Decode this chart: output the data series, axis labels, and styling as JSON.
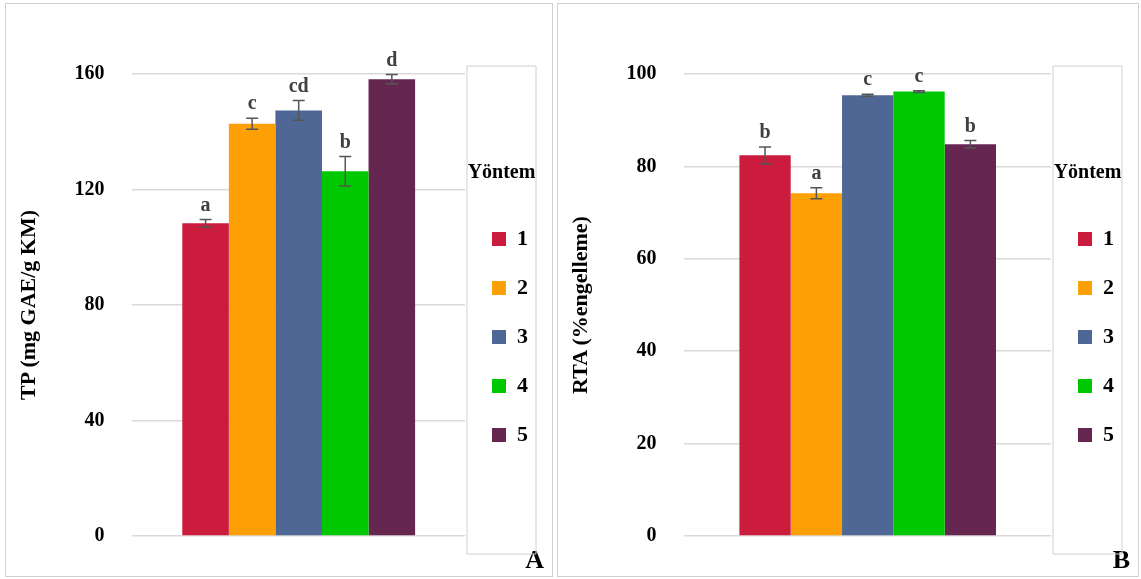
{
  "chart_data": [
    {
      "type": "bar",
      "ylabel": "TP (mg GAE/g KM)",
      "legend_title": "Yöntem",
      "legend": "right",
      "grid": "y",
      "categories": [
        null
      ],
      "series": [
        {
          "name": "1",
          "color": "#cc1c3e",
          "values": [
            108.3
          ],
          "errors": [
            1.3
          ]
        },
        {
          "name": "2",
          "color": "#fca005",
          "values": [
            142.8
          ],
          "errors": [
            1.9
          ]
        },
        {
          "name": "3",
          "color": "#4f6794",
          "values": [
            147.4
          ],
          "errors": [
            3.4
          ]
        },
        {
          "name": "4",
          "color": "#00c800",
          "values": [
            126.3
          ],
          "errors": [
            5.1
          ]
        },
        {
          "name": "5",
          "color": "#65264f",
          "values": [
            158.2
          ],
          "errors": [
            1.6
          ]
        }
      ],
      "ylim": [
        0,
        160
      ],
      "yticks": [
        0,
        40,
        80,
        120,
        160
      ],
      "annotations": [
        {
          "text": "a",
          "y": 109.6
        },
        {
          "text": "c",
          "y": 144.7
        },
        {
          "text": "cd",
          "y": 150.8
        },
        {
          "text": "b",
          "y": 131.4
        },
        {
          "text": "d",
          "y": 159.8
        },
        "A"
      ]
    },
    {
      "type": "bar",
      "ylabel": "RTA (%engelleme)",
      "legend_title": "Yöntem",
      "legend": "right",
      "grid": "y",
      "categories": [
        null
      ],
      "series": [
        {
          "name": "1",
          "color": "#cc1c3e",
          "values": [
            82.4
          ],
          "errors": [
            1.8
          ]
        },
        {
          "name": "2",
          "color": "#fca005",
          "values": [
            74.2
          ],
          "errors": [
            1.2
          ]
        },
        {
          "name": "3",
          "color": "#4f6794",
          "values": [
            95.4
          ],
          "errors": [
            0.2
          ]
        },
        {
          "name": "4",
          "color": "#00c800",
          "values": [
            96.2
          ],
          "errors": [
            0.2
          ]
        },
        {
          "name": "5",
          "color": "#65264f",
          "values": [
            84.8
          ],
          "errors": [
            0.8
          ]
        }
      ],
      "ylim": [
        0,
        100
      ],
      "yticks": [
        0,
        20,
        40,
        60,
        80,
        100
      ],
      "annotations": [
        {
          "text": "b",
          "y": 84.2
        },
        {
          "text": "a",
          "y": 75.4
        },
        {
          "text": "c",
          "y": 95.6
        },
        {
          "text": "c",
          "y": 96.4
        },
        {
          "text": "b",
          "y": 85.6
        },
        "B"
      ]
    }
  ]
}
